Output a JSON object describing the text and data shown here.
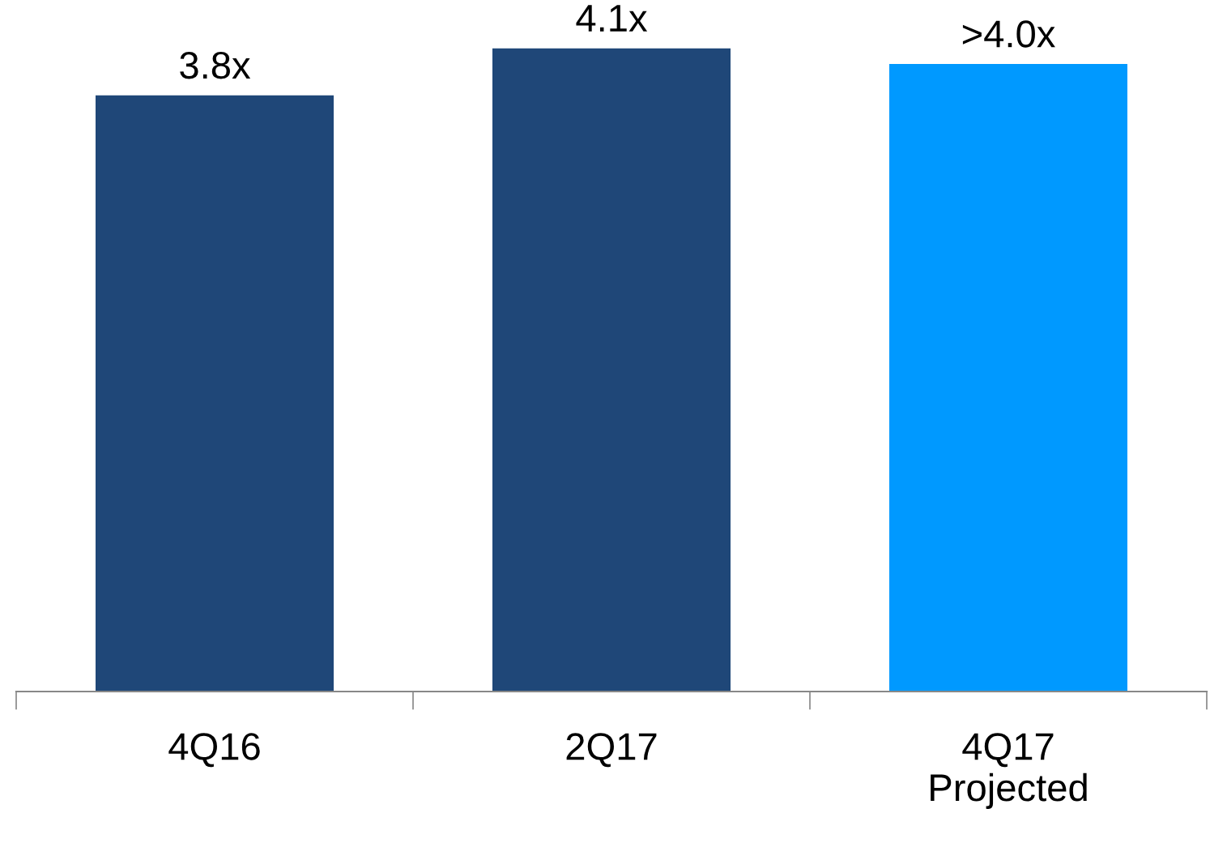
{
  "chart_data": {
    "type": "bar",
    "categories": [
      "4Q16",
      "2Q17",
      "4Q17\nProjected"
    ],
    "values": [
      3.8,
      4.1,
      4.0
    ],
    "value_labels": [
      "3.8x",
      "4.1x",
      ">4.0x"
    ],
    "colors": [
      "#1f4778",
      "#1f4778",
      "#0099ff"
    ],
    "tick_labels": "x",
    "grid": false,
    "legend": false
  }
}
